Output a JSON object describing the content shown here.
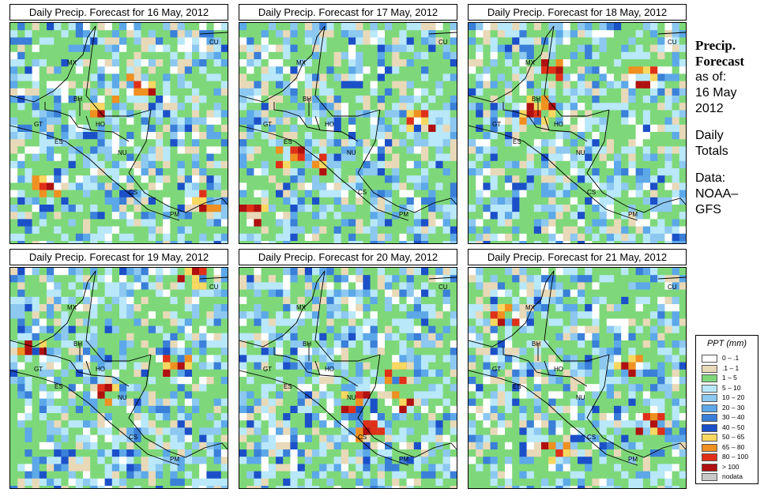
{
  "panels": [
    {
      "title": "Daily Precip. Forecast for  16 May, 2012",
      "seed": 3
    },
    {
      "title": "Daily Precip. Forecast for  17 May, 2012",
      "seed": 11
    },
    {
      "title": "Daily Precip. Forecast for  18 May, 2012",
      "seed": 23
    },
    {
      "title": "Daily Precip. Forecast for  19 May, 2012",
      "seed": 37
    },
    {
      "title": "Daily Precip. Forecast for  20 May, 2012",
      "seed": 51
    },
    {
      "title": "Daily Precip. Forecast for  21 May, 2012",
      "seed": 67
    }
  ],
  "country_labels": [
    "MX",
    "BH",
    "GT",
    "HO",
    "ES",
    "NU",
    "CS",
    "PM",
    "CU"
  ],
  "sidebar": {
    "title_line1": "Precip.",
    "title_line2": "Forecast",
    "asof_line1": "as of:",
    "asof_line2": "16 May",
    "asof_line3": "2012",
    "totals_line1": "Daily",
    "totals_line2": "Totals",
    "data_line1": "Data:",
    "data_line2": "NOAA–",
    "data_line3": "GFS"
  },
  "legend": {
    "title": "PPT (mm)",
    "entries": [
      {
        "label": "0 – .1",
        "color": "#ffffff"
      },
      {
        "label": ".1 – 1",
        "color": "#e8d9b8"
      },
      {
        "label": "1 – 5",
        "color": "#7ed87a"
      },
      {
        "label": "5 – 10",
        "color": "#b8e8fa"
      },
      {
        "label": "10 – 20",
        "color": "#8cc8f0"
      },
      {
        "label": "20 – 30",
        "color": "#5ca8e8"
      },
      {
        "label": "30 – 40",
        "color": "#3a7fd8"
      },
      {
        "label": "40 – 50",
        "color": "#1c50c8"
      },
      {
        "label": "50 – 65",
        "color": "#f8d860"
      },
      {
        "label": "65 – 80",
        "color": "#f09020"
      },
      {
        "label": "80 – 100",
        "color": "#e03018"
      },
      {
        "label": "> 100",
        "color": "#b01010"
      },
      {
        "label": "nodata",
        "color": "#c8c8c8"
      }
    ]
  }
}
